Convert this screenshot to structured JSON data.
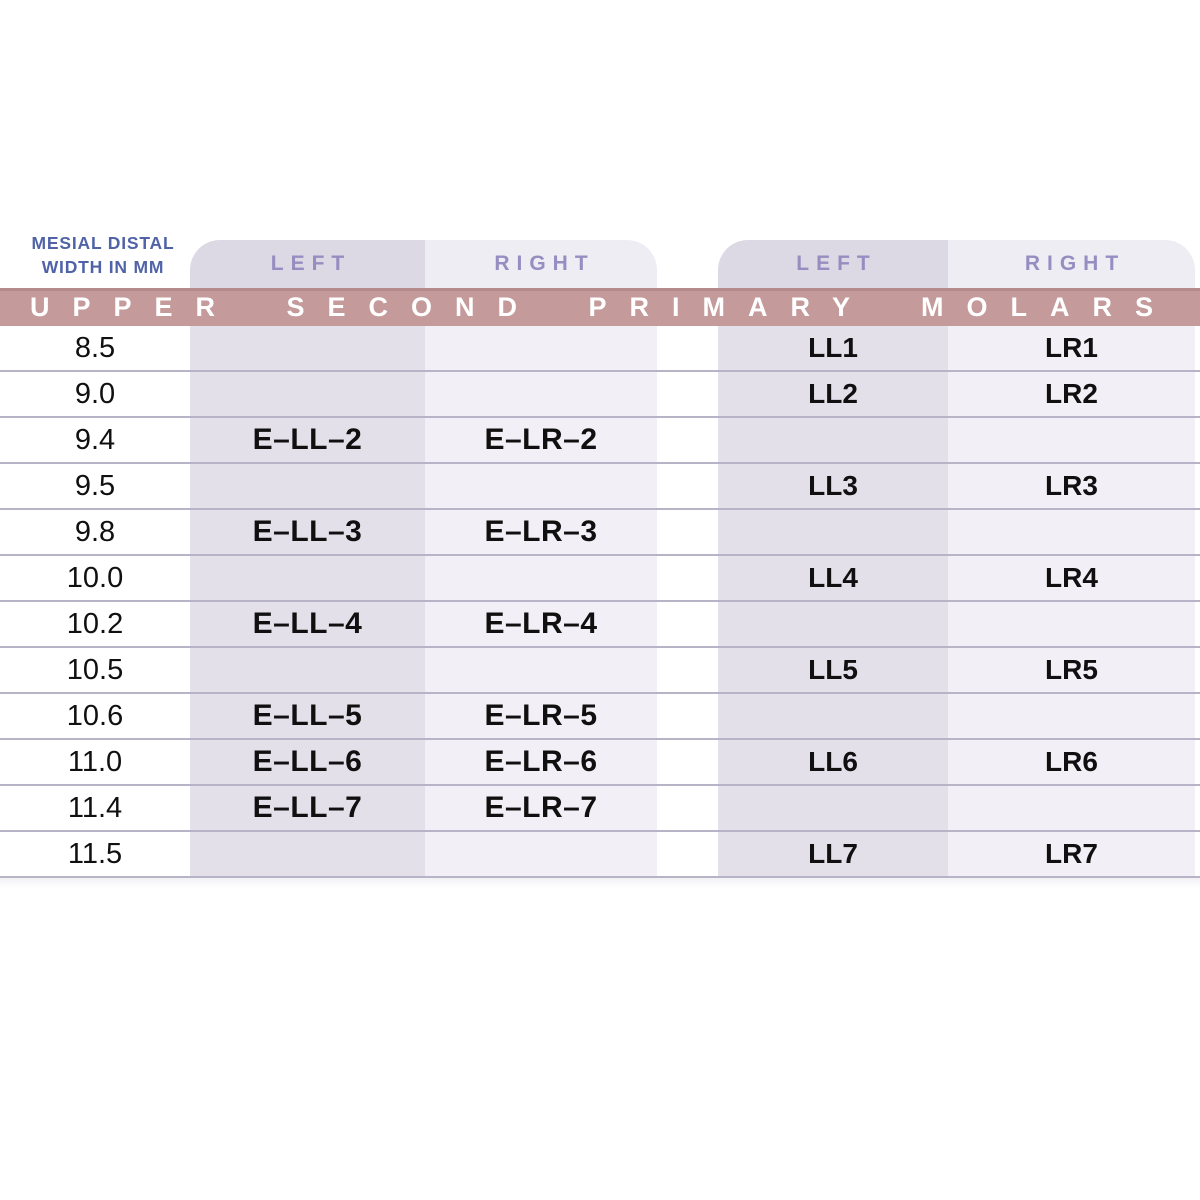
{
  "header": {
    "measure_line1": "MESIAL DISTAL",
    "measure_line2": "WIDTH IN MM",
    "panel1_left": "LEFT",
    "panel1_right": "RIGHT",
    "panel2_left": "LEFT",
    "panel2_right": "RIGHT",
    "banner": "UPPER SECOND PRIMARY MOLARS"
  },
  "colors": {
    "banner_bg": "#c49a9b",
    "banner_edge": "#b58a8a",
    "banner_text": "#ffffff",
    "stripe_dark": "#e3e0ea",
    "stripe_light": "#f2f0f6",
    "column_header_text": "#968dc0",
    "measure_label_text": "#5063a8",
    "row_line": "#b6b4c6",
    "cell_text": "#101010"
  },
  "rows": [
    {
      "width": "8.5",
      "e_ll": "",
      "e_lr": "",
      "ll": "LL1",
      "lr": "LR1"
    },
    {
      "width": "9.0",
      "e_ll": "",
      "e_lr": "",
      "ll": "LL2",
      "lr": "LR2"
    },
    {
      "width": "9.4",
      "e_ll": "E–LL–2",
      "e_lr": "E–LR–2",
      "ll": "",
      "lr": ""
    },
    {
      "width": "9.5",
      "e_ll": "",
      "e_lr": "",
      "ll": "LL3",
      "lr": "LR3"
    },
    {
      "width": "9.8",
      "e_ll": "E–LL–3",
      "e_lr": "E–LR–3",
      "ll": "",
      "lr": ""
    },
    {
      "width": "10.0",
      "e_ll": "",
      "e_lr": "",
      "ll": "LL4",
      "lr": "LR4"
    },
    {
      "width": "10.2",
      "e_ll": "E–LL–4",
      "e_lr": "E–LR–4",
      "ll": "",
      "lr": ""
    },
    {
      "width": "10.5",
      "e_ll": "",
      "e_lr": "",
      "ll": "LL5",
      "lr": "LR5"
    },
    {
      "width": "10.6",
      "e_ll": "E–LL–5",
      "e_lr": "E–LR–5",
      "ll": "",
      "lr": ""
    },
    {
      "width": "11.0",
      "e_ll": "E–LL–6",
      "e_lr": "E–LR–6",
      "ll": "LL6",
      "lr": "LR6"
    },
    {
      "width": "11.4",
      "e_ll": "E–LL–7",
      "e_lr": "E–LR–7",
      "ll": "",
      "lr": ""
    },
    {
      "width": "11.5",
      "e_ll": "",
      "e_lr": "",
      "ll": "LL7",
      "lr": "LR7"
    }
  ],
  "chart_data": {
    "type": "table",
    "title": "UPPER SECOND PRIMARY MOLARS",
    "columns": [
      "MESIAL DISTAL WIDTH IN MM",
      "LEFT",
      "RIGHT",
      "LEFT",
      "RIGHT"
    ],
    "rows": [
      [
        "8.5",
        "",
        "",
        "LL1",
        "LR1"
      ],
      [
        "9.0",
        "",
        "",
        "LL2",
        "LR2"
      ],
      [
        "9.4",
        "E–LL–2",
        "E–LR–2",
        "",
        ""
      ],
      [
        "9.5",
        "",
        "",
        "LL3",
        "LR3"
      ],
      [
        "9.8",
        "E–LL–3",
        "E–LR–3",
        "",
        ""
      ],
      [
        "10.0",
        "",
        "",
        "LL4",
        "LR4"
      ],
      [
        "10.2",
        "E–LL–4",
        "E–LR–4",
        "",
        ""
      ],
      [
        "10.5",
        "",
        "",
        "LL5",
        "LR5"
      ],
      [
        "10.6",
        "E–LL–5",
        "E–LR–5",
        "",
        ""
      ],
      [
        "11.0",
        "E–LL–6",
        "E–LR–6",
        "LL6",
        "LR6"
      ],
      [
        "11.4",
        "E–LL–7",
        "E–LR–7",
        "",
        ""
      ],
      [
        "11.5",
        "",
        "",
        "LL7",
        "LR7"
      ]
    ]
  }
}
